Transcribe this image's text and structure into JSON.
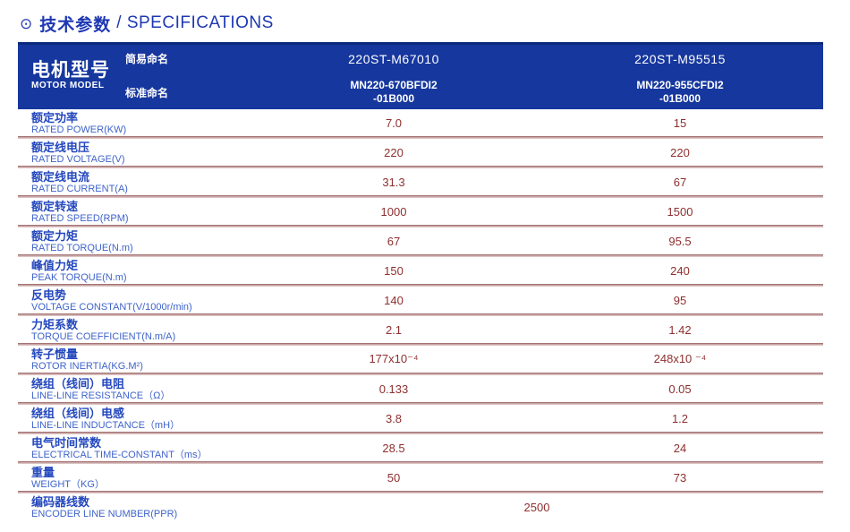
{
  "page_title": {
    "bullet_icon": "⊙",
    "text_zh": "技术参数",
    "text_en": "/ SPECIFICATIONS"
  },
  "colors": {
    "title_blue": "#1e38b2",
    "header_band_blue": "#16379e",
    "header_band_top_edge": "#0b2a7e",
    "label_zh_blue": "#2448bd",
    "label_en_blue": "#3e63ca",
    "value_red": "#8e2f2f",
    "separator_red": "#966060"
  },
  "table": {
    "header": {
      "model_label_zh": "电机型号",
      "model_label_en": "MOTOR MODEL",
      "simple_name_label": "简易命名",
      "standard_name_label": "标准命名",
      "columns": [
        {
          "simple_name": "220ST-M67010",
          "standard_name_line1": "MN220-670BFDI2",
          "standard_name_line2": "-01B000"
        },
        {
          "simple_name": "220ST-M95515",
          "standard_name_line1": "MN220-955CFDI2",
          "standard_name_line2": "-01B000"
        }
      ]
    },
    "rows": [
      {
        "zh": "额定功率",
        "en": "RATED POWER(KW)",
        "v1": "7.0",
        "v2": "15"
      },
      {
        "zh": "额定线电压",
        "en": "RATED VOLTAGE(V)",
        "v1": "220",
        "v2": "220"
      },
      {
        "zh": "额定线电流",
        "en": "RATED CURRENT(A)",
        "v1": "31.3",
        "v2": "67"
      },
      {
        "zh": "额定转速",
        "en": "RATED SPEED(RPM)",
        "v1": "1000",
        "v2": "1500"
      },
      {
        "zh": "额定力矩",
        "en": "RATED TORQUE(N.m)",
        "v1": "67",
        "v2": "95.5"
      },
      {
        "zh": "峰值力矩",
        "en": "PEAK TORQUE(N.m)",
        "v1": "150",
        "v2": "240"
      },
      {
        "zh": "反电势",
        "en": "VOLTAGE CONSTANT(V/1000r/min)",
        "v1": "140",
        "v2": "95"
      },
      {
        "zh": "力矩系数",
        "en": "TORQUE COEFFICIENT(N.m/A)",
        "v1": "2.1",
        "v2": "1.42"
      },
      {
        "zh": "转子惯量",
        "en": "ROTOR INERTIA(KG.M²)",
        "v1": "177x10⁻⁴",
        "v2": "248x10 ⁻⁴"
      },
      {
        "zh": "绕组（线间）电阻",
        "en": "LINE-LINE RESISTANCE（Ω）",
        "v1": "0.133",
        "v2": "0.05"
      },
      {
        "zh": "绕组（线间）电感",
        "en": "LINE-LINE INDUCTANCE（mH）",
        "v1": "3.8",
        "v2": "1.2"
      },
      {
        "zh": "电气时间常数",
        "en": "ELECTRICAL TIME-CONSTANT（ms）",
        "v1": "28.5",
        "v2": "24"
      },
      {
        "zh": "重量",
        "en": "WEIGHT（KG）",
        "v1": "50",
        "v2": "73"
      },
      {
        "zh": "编码器线数",
        "en": "ENCODER LINE NUMBER(PPR)",
        "span": "2500"
      }
    ]
  }
}
